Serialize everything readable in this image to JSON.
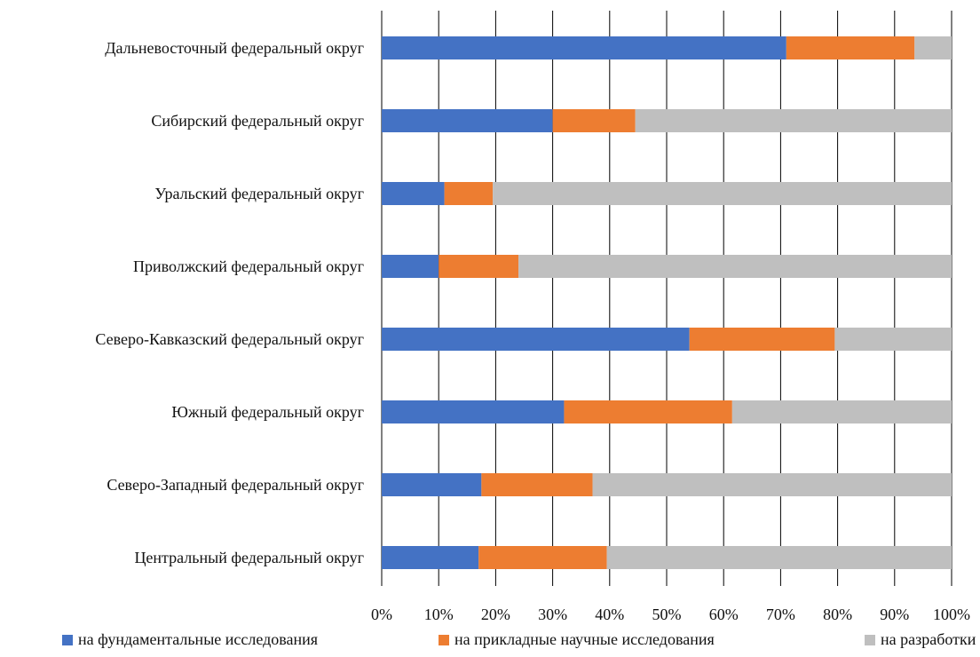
{
  "chart_data": {
    "type": "bar",
    "orientation": "horizontal",
    "stacked": "percent",
    "categories": [
      "Дальневосточный федеральный округ",
      "Сибирский федеральный округ",
      "Уральский федеральный округ",
      "Приволжский федеральный округ",
      "Северо-Кавказский федеральный округ",
      "Южный федеральный округ",
      "Северо-Западный федеральный округ",
      "Центральный федеральный округ"
    ],
    "series": [
      {
        "name": "на фундаментальные исследования",
        "color": "#4472c4",
        "values": [
          71,
          30,
          11,
          10,
          54,
          32,
          17.5,
          17
        ]
      },
      {
        "name": "на прикладные научные исследования",
        "color": "#ed7d31",
        "values": [
          22.5,
          14.5,
          8.5,
          14,
          25.5,
          29.5,
          19.5,
          22.5
        ]
      },
      {
        "name": "на разработки",
        "color": "#bfbfbf",
        "values": [
          6.5,
          55.5,
          80.5,
          76,
          20.5,
          38.5,
          63,
          60.5
        ]
      }
    ],
    "xlim": [
      0,
      100
    ],
    "xticks": [
      "0%",
      "10%",
      "20%",
      "30%",
      "40%",
      "50%",
      "60%",
      "70%",
      "80%",
      "90%",
      "100%"
    ],
    "grid": "vertical",
    "legend_position": "bottom",
    "title": "",
    "xlabel": "",
    "ylabel": ""
  }
}
